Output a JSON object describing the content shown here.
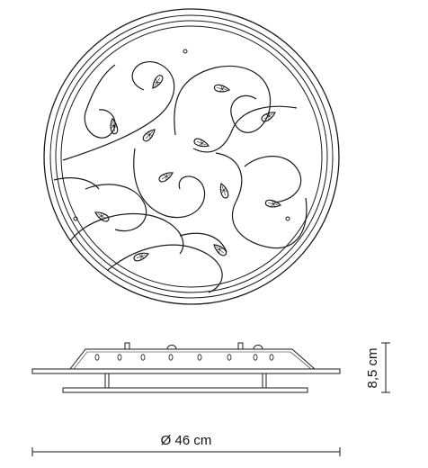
{
  "dimensions": {
    "diameter": "Ø 46 cm",
    "height": "8,5 cm"
  },
  "colors": {
    "line": "#1a1a1a",
    "background": "#ffffff"
  },
  "icons": {
    "crystal": "teardrop-crystal-icon",
    "screw": "screw-hole-icon"
  }
}
